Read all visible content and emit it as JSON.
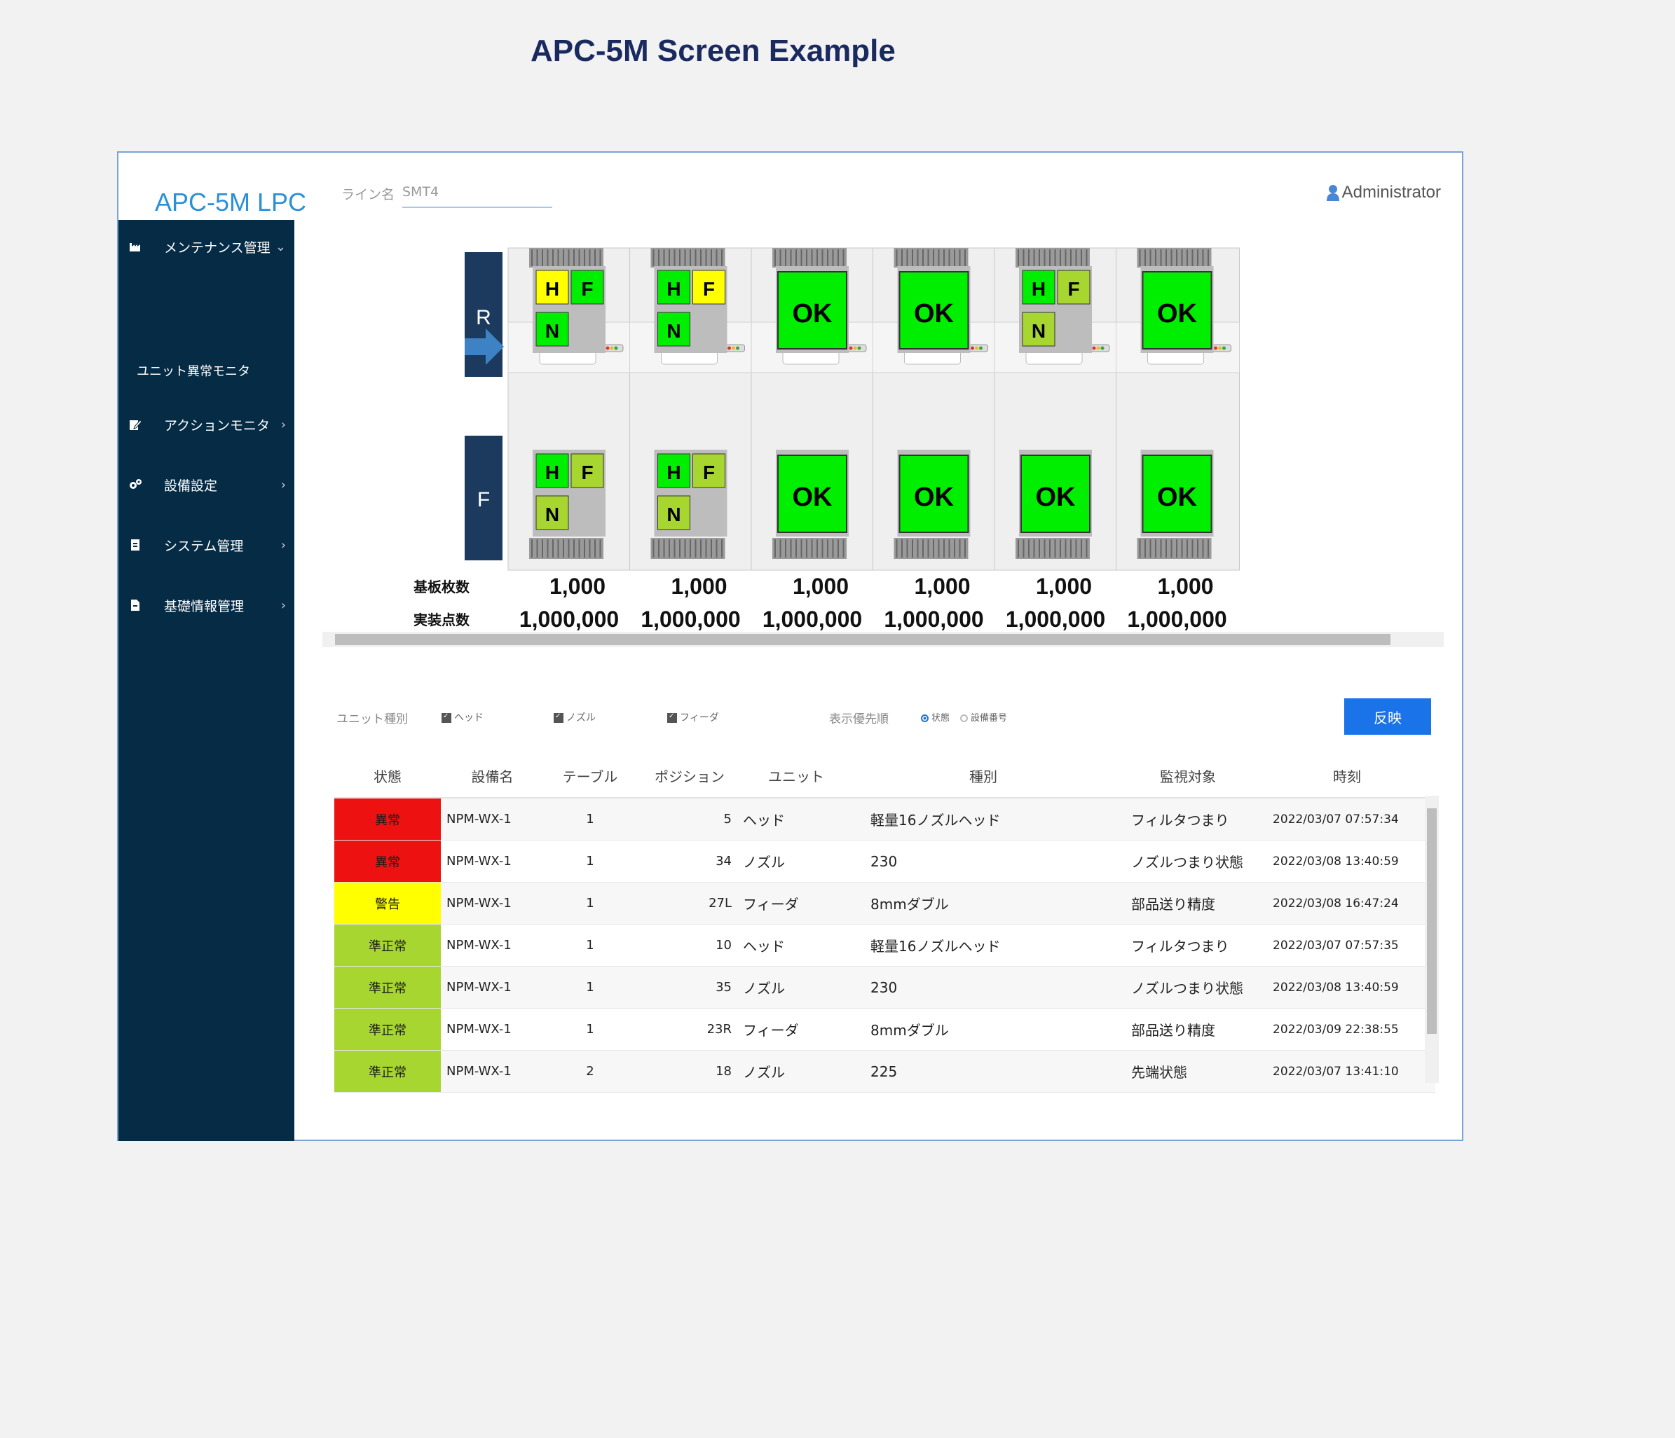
{
  "page_heading": "APC-5M Screen Example",
  "app": {
    "logo": "APC-5M LPC",
    "line_label": "ライン名",
    "line_value": "SMT4",
    "user": "Administrator"
  },
  "sidebar": {
    "items": [
      {
        "label": "メンテナンス管理",
        "chevron": "⌄",
        "icon": "factory-icon"
      },
      {
        "label": "アクションモニタ",
        "chevron": "›",
        "icon": "edit-icon"
      },
      {
        "label": "設備設定",
        "chevron": "›",
        "icon": "gears-icon"
      },
      {
        "label": "システム管理",
        "chevron": "›",
        "icon": "document-icon"
      },
      {
        "label": "基礎情報管理",
        "chevron": "›",
        "icon": "file-icon"
      }
    ],
    "sub_item": "ユニット異常モニタ"
  },
  "line_map": {
    "rear_label": "R",
    "front_label": "F",
    "boards_label": "基板枚数",
    "mounts_label": "実装点数",
    "machines": [
      {
        "rear": [
          "H",
          "F",
          "N"
        ],
        "front": [
          "H",
          "F",
          "N"
        ],
        "boards": "1,000",
        "mounts": "1,000,000"
      },
      {
        "rear": [
          "H",
          "F",
          "N"
        ],
        "front": [
          "H",
          "F",
          "N"
        ],
        "boards": "1,000",
        "mounts": "1,000,000"
      },
      {
        "rear": "OK",
        "front": "OK",
        "boards": "1,000",
        "mounts": "1,000,000"
      },
      {
        "rear": "OK",
        "front": "OK",
        "boards": "1,000",
        "mounts": "1,000,000"
      },
      {
        "rear": [
          "H",
          "F",
          "N"
        ],
        "front": "OK",
        "boards": "1,000",
        "mounts": "1,000,000"
      },
      {
        "rear": "OK",
        "front": "OK",
        "boards": "1,000",
        "mounts": "1,000,000"
      }
    ],
    "colors": {
      "ok": "#00ee00",
      "warning": "#ffff00",
      "sub_normal": "#a8d630",
      "machine_gray": "#c9c9c9",
      "marker": "#1b3a5e",
      "arrow": "#3d82c4"
    }
  },
  "filters": {
    "unit_type_label": "ユニット種別",
    "head": "ヘッド",
    "nozzle": "ノズル",
    "feeder": "フィーダ",
    "priority_label": "表示優先順",
    "opt_status": "状態",
    "opt_equipment": "設備番号",
    "apply": "反映"
  },
  "table": {
    "headers": [
      "状態",
      "設備名",
      "テーブル",
      "ポジション",
      "ユニット",
      "種別",
      "監視対象",
      "時刻"
    ],
    "rows": [
      {
        "status": "異常",
        "color": "#ee1111",
        "equipment": "NPM-WX-1",
        "table": "1",
        "position": "5",
        "unit": "ヘッド",
        "type": "軽量16ノズルヘッド",
        "target": "フィルタつまり",
        "time": "2022/03/07 07:57:34"
      },
      {
        "status": "異常",
        "color": "#ee1111",
        "equipment": "NPM-WX-1",
        "table": "1",
        "position": "34",
        "unit": "ノズル",
        "type": "230",
        "target": "ノズルつまり状態",
        "time": "2022/03/08 13:40:59"
      },
      {
        "status": "警告",
        "color": "#ffff00",
        "equipment": "NPM-WX-1",
        "table": "1",
        "position": "27L",
        "unit": "フィーダ",
        "type": "8mmダブル",
        "target": "部品送り精度",
        "time": "2022/03/08 16:47:24"
      },
      {
        "status": "準正常",
        "color": "#a8d630",
        "equipment": "NPM-WX-1",
        "table": "1",
        "position": "10",
        "unit": "ヘッド",
        "type": "軽量16ノズルヘッド",
        "target": "フィルタつまり",
        "time": "2022/03/07 07:57:35"
      },
      {
        "status": "準正常",
        "color": "#a8d630",
        "equipment": "NPM-WX-1",
        "table": "1",
        "position": "35",
        "unit": "ノズル",
        "type": "230",
        "target": "ノズルつまり状態",
        "time": "2022/03/08 13:40:59"
      },
      {
        "status": "準正常",
        "color": "#a8d630",
        "equipment": "NPM-WX-1",
        "table": "1",
        "position": "23R",
        "unit": "フィーダ",
        "type": "8mmダブル",
        "target": "部品送り精度",
        "time": "2022/03/09 22:38:55"
      },
      {
        "status": "準正常",
        "color": "#a8d630",
        "equipment": "NPM-WX-1",
        "table": "2",
        "position": "18",
        "unit": "ノズル",
        "type": "225",
        "target": "先端状態",
        "time": "2022/03/07 13:41:10"
      }
    ]
  }
}
